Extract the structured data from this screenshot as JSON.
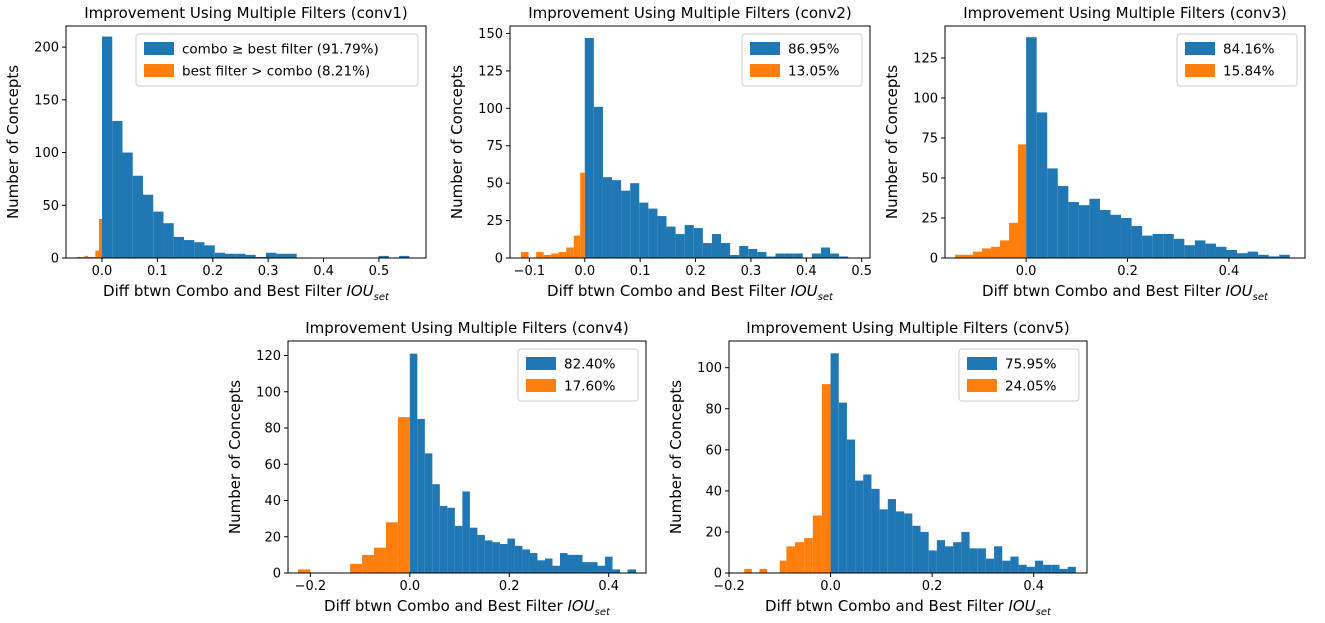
{
  "chart_data": [
    {
      "type": "bar",
      "title": "Improvement Using Multiple Filters (conv1)",
      "xlabel": "Diff btwn Combo and Best Filter",
      "xlabel_math": "IOU",
      "xlabel_sub": "set",
      "ylabel": "Number of Concepts",
      "xlim": [
        -0.065,
        0.585
      ],
      "ylim": [
        0,
        220
      ],
      "xticks": [
        0.0,
        0.1,
        0.2,
        0.3,
        0.4,
        0.5
      ],
      "xtick_labels": [
        "0.0",
        "0.1",
        "0.2",
        "0.3",
        "0.4",
        "0.5"
      ],
      "yticks": [
        0,
        50,
        100,
        150,
        200
      ],
      "legend_position": "top-right",
      "colors": {
        "improved": "#1f77b4",
        "worse": "#ff7f0e"
      },
      "series": [
        {
          "name": "combo  ≥  best filter (91.79%)",
          "color": "#1f77b4",
          "bin_edges": [
            0.0,
            0.0185,
            0.037,
            0.0555,
            0.074,
            0.0925,
            0.111,
            0.1295,
            0.148,
            0.1665,
            0.185,
            0.2035,
            0.222,
            0.2405,
            0.259,
            0.2775,
            0.296,
            0.3145,
            0.333,
            0.3515,
            0.37,
            0.3885,
            0.407,
            0.4255,
            0.444,
            0.4625,
            0.481,
            0.4995,
            0.518,
            0.5365,
            0.555
          ],
          "counts": [
            210,
            130,
            100,
            78,
            60,
            44,
            33,
            20,
            17,
            15,
            12,
            5,
            4,
            4,
            3,
            1,
            5,
            4,
            4,
            0,
            0,
            0,
            0,
            0,
            0,
            0,
            0,
            2,
            0,
            2
          ]
        },
        {
          "name": "best filter > combo (8.21%)",
          "color": "#ff7f0e",
          "bin_edges": [
            -0.045,
            -0.0384,
            -0.0318,
            -0.0252,
            -0.0186,
            -0.012,
            -0.0054,
            0.0
          ],
          "counts": [
            1,
            1,
            2,
            1,
            1,
            7,
            37
          ]
        }
      ]
    },
    {
      "type": "bar",
      "title": "Improvement Using Multiple Filters (conv2)",
      "xlabel": "Diff btwn Combo and Best Filter",
      "xlabel_math": "IOU",
      "xlabel_sub": "set",
      "ylabel": "Number of Concepts",
      "xlim": [
        -0.135,
        0.515
      ],
      "ylim": [
        0,
        155
      ],
      "xticks": [
        -0.1,
        0.0,
        0.1,
        0.2,
        0.3,
        0.4,
        0.5
      ],
      "xtick_labels": [
        "−0.1",
        "0.0",
        "0.1",
        "0.2",
        "0.3",
        "0.4",
        "0.5"
      ],
      "yticks": [
        0,
        25,
        50,
        75,
        100,
        125,
        150
      ],
      "legend_position": "top-right",
      "colors": {
        "improved": "#1f77b4",
        "worse": "#ff7f0e"
      },
      "series": [
        {
          "name": "86.95%",
          "color": "#1f77b4",
          "bin_edges": [
            0.0,
            0.0164,
            0.0328,
            0.0492,
            0.0656,
            0.082,
            0.0984,
            0.1148,
            0.1312,
            0.1476,
            0.164,
            0.1804,
            0.1968,
            0.2132,
            0.2296,
            0.246,
            0.2624,
            0.2788,
            0.2952,
            0.3116,
            0.328,
            0.3444,
            0.3608,
            0.3772,
            0.3936,
            0.41,
            0.4264,
            0.4428,
            0.4592,
            0.4756
          ],
          "counts": [
            147,
            101,
            54,
            52,
            45,
            50,
            37,
            33,
            28,
            21,
            16,
            22,
            20,
            10,
            16,
            10,
            2,
            8,
            6,
            4,
            1,
            3,
            3,
            3,
            0,
            3,
            7,
            3,
            1
          ]
        },
        {
          "name": "13.05%",
          "color": "#ff7f0e",
          "bin_edges": [
            -0.115,
            -0.1014,
            -0.0878,
            -0.0742,
            -0.0606,
            -0.047,
            -0.0334,
            -0.0198,
            -0.0082,
            0.0
          ],
          "counts": [
            4,
            0,
            4,
            2,
            3,
            4,
            7,
            15,
            57
          ]
        }
      ]
    },
    {
      "type": "bar",
      "title": "Improvement Using Multiple Filters (conv3)",
      "xlabel": "Diff btwn Combo and Best Filter",
      "xlabel_math": "IOU",
      "xlabel_sub": "set",
      "ylabel": "Number of Concepts",
      "xlim": [
        -0.16,
        0.55
      ],
      "ylim": [
        0,
        145
      ],
      "xticks": [
        0.0,
        0.2,
        0.4
      ],
      "xtick_labels": [
        "0.0",
        "0.2",
        "0.4"
      ],
      "yticks": [
        0,
        25,
        50,
        75,
        100,
        125
      ],
      "legend_position": "top-right",
      "colors": {
        "improved": "#1f77b4",
        "worse": "#ff7f0e"
      },
      "series": [
        {
          "name": "84.16%",
          "color": "#1f77b4",
          "bin_edges": [
            0.0,
            0.0208,
            0.0416,
            0.0624,
            0.0832,
            0.104,
            0.1248,
            0.1456,
            0.1664,
            0.1872,
            0.208,
            0.2288,
            0.2496,
            0.2704,
            0.2912,
            0.312,
            0.3328,
            0.3536,
            0.3744,
            0.3952,
            0.416,
            0.4368,
            0.4576,
            0.4784,
            0.4992,
            0.52
          ],
          "counts": [
            138,
            91,
            56,
            45,
            35,
            33,
            37,
            30,
            27,
            25,
            20,
            14,
            15,
            15,
            12,
            8,
            11,
            9,
            7,
            5,
            3,
            4,
            2,
            1,
            2
          ]
        },
        {
          "name": "15.84%",
          "color": "#ff7f0e",
          "bin_edges": [
            -0.14,
            -0.1223,
            -0.1046,
            -0.0869,
            -0.0692,
            -0.0515,
            -0.0338,
            -0.0161,
            0.0
          ],
          "counts": [
            2,
            2,
            4,
            6,
            7,
            11,
            22,
            71
          ]
        }
      ]
    },
    {
      "type": "bar",
      "title": "Improvement Using Multiple Filters (conv4)",
      "xlabel": "Diff btwn Combo and Best Filter",
      "xlabel_math": "IOU",
      "xlabel_sub": "set",
      "ylabel": "Number of Concepts",
      "xlim": [
        -0.245,
        0.475
      ],
      "ylim": [
        0,
        128
      ],
      "xticks": [
        -0.2,
        0.0,
        0.2,
        0.4
      ],
      "xtick_labels": [
        "−0.2",
        "0.0",
        "0.2",
        "0.4"
      ],
      "yticks": [
        0,
        20,
        40,
        60,
        80,
        100,
        120
      ],
      "legend_position": "top-right",
      "colors": {
        "improved": "#1f77b4",
        "worse": "#ff7f0e"
      },
      "series": [
        {
          "name": "82.40%",
          "color": "#1f77b4",
          "bin_edges": [
            0.0,
            0.0151,
            0.0302,
            0.0453,
            0.0604,
            0.0755,
            0.0906,
            0.1057,
            0.1208,
            0.1359,
            0.151,
            0.1661,
            0.1812,
            0.1963,
            0.2114,
            0.2265,
            0.2416,
            0.2567,
            0.2718,
            0.2869,
            0.302,
            0.3171,
            0.3322,
            0.3473,
            0.3624,
            0.3775,
            0.3926,
            0.4077,
            0.4228,
            0.4379,
            0.455
          ],
          "counts": [
            121,
            85,
            66,
            49,
            37,
            36,
            26,
            45,
            25,
            21,
            18,
            17,
            16,
            19,
            15,
            13,
            11,
            7,
            8,
            4,
            11,
            10,
            10,
            6,
            6,
            4,
            9,
            2,
            0,
            2
          ]
        },
        {
          "name": "17.60%",
          "color": "#ff7f0e",
          "bin_edges": [
            -0.225,
            -0.2,
            -0.175,
            -0.15,
            -0.12,
            -0.096,
            -0.072,
            -0.048,
            -0.024,
            0.0
          ],
          "counts": [
            2,
            0,
            0,
            0,
            5,
            10,
            14,
            28,
            86
          ]
        }
      ]
    },
    {
      "type": "bar",
      "title": "Improvement Using Multiple Filters (conv5)",
      "xlabel": "Diff btwn Combo and Best Filter",
      "xlabel_math": "IOU",
      "xlabel_sub": "set",
      "ylabel": "Number of Concepts",
      "xlim": [
        -0.2,
        0.505
      ],
      "ylim": [
        0,
        113
      ],
      "xticks": [
        -0.2,
        0.0,
        0.2,
        0.4
      ],
      "xtick_labels": [
        "−0.2",
        "0.0",
        "0.2",
        "0.4"
      ],
      "yticks": [
        0,
        20,
        40,
        60,
        80,
        100
      ],
      "legend_position": "top-right",
      "colors": {
        "improved": "#1f77b4",
        "worse": "#ff7f0e"
      },
      "series": [
        {
          "name": "75.95%",
          "color": "#1f77b4",
          "bin_edges": [
            0.0,
            0.0161,
            0.0322,
            0.0483,
            0.0644,
            0.0805,
            0.0966,
            0.1127,
            0.1288,
            0.1449,
            0.161,
            0.1771,
            0.1932,
            0.2093,
            0.2254,
            0.2415,
            0.2576,
            0.2737,
            0.2898,
            0.3059,
            0.322,
            0.3381,
            0.3542,
            0.3703,
            0.3864,
            0.4025,
            0.4186,
            0.4347,
            0.4508,
            0.4669,
            0.483
          ],
          "counts": [
            107,
            83,
            65,
            45,
            48,
            41,
            31,
            36,
            30,
            29,
            23,
            20,
            11,
            16,
            13,
            15,
            20,
            12,
            12,
            7,
            13,
            6,
            8,
            4,
            3,
            6,
            4,
            4,
            2,
            3
          ]
        },
        {
          "name": "24.05%",
          "color": "#ff7f0e",
          "bin_edges": [
            -0.17,
            -0.155,
            -0.14,
            -0.125,
            -0.1,
            -0.087,
            -0.07,
            -0.052,
            -0.035,
            -0.017,
            0.0
          ],
          "counts": [
            2,
            0,
            2,
            0,
            6,
            13,
            15,
            17,
            28,
            92
          ]
        }
      ]
    }
  ]
}
